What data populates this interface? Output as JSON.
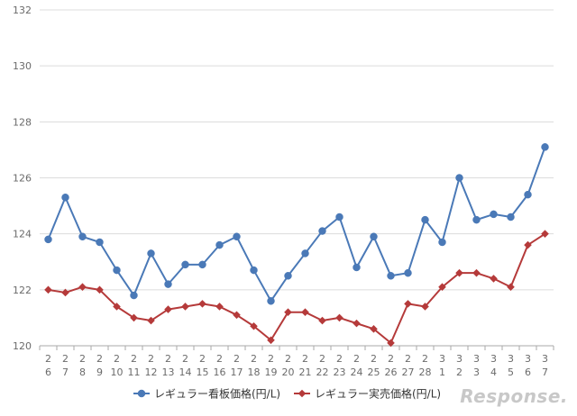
{
  "chart_data": {
    "type": "line",
    "title": "",
    "xlabel": "",
    "ylabel": "",
    "ylim": [
      120,
      132
    ],
    "y_ticks": [
      120,
      122,
      124,
      126,
      128,
      130,
      132
    ],
    "grid": "horizontal",
    "legend_position": "bottom",
    "categories": [
      [
        "2",
        "6"
      ],
      [
        "2",
        "7"
      ],
      [
        "2",
        "8"
      ],
      [
        "2",
        "9"
      ],
      [
        "2",
        "10"
      ],
      [
        "2",
        "11"
      ],
      [
        "2",
        "12"
      ],
      [
        "2",
        "13"
      ],
      [
        "2",
        "14"
      ],
      [
        "2",
        "15"
      ],
      [
        "2",
        "16"
      ],
      [
        "2",
        "17"
      ],
      [
        "2",
        "18"
      ],
      [
        "2",
        "19"
      ],
      [
        "2",
        "20"
      ],
      [
        "2",
        "21"
      ],
      [
        "2",
        "22"
      ],
      [
        "2",
        "23"
      ],
      [
        "2",
        "24"
      ],
      [
        "2",
        "25"
      ],
      [
        "2",
        "26"
      ],
      [
        "2",
        "27"
      ],
      [
        "2",
        "28"
      ],
      [
        "3",
        "1"
      ],
      [
        "3",
        "2"
      ],
      [
        "3",
        "3"
      ],
      [
        "3",
        "4"
      ],
      [
        "3",
        "5"
      ],
      [
        "3",
        "6"
      ],
      [
        "3",
        "7"
      ]
    ],
    "series": [
      {
        "name": "レギュラー看板価格(円/L)",
        "color": "#4a79b7",
        "marker": "circle",
        "values": [
          123.8,
          125.3,
          123.9,
          123.7,
          122.7,
          121.8,
          123.3,
          122.2,
          122.9,
          122.9,
          123.6,
          123.9,
          122.7,
          121.6,
          122.5,
          123.3,
          124.1,
          124.6,
          122.8,
          123.9,
          122.5,
          122.6,
          124.5,
          123.7,
          126.0,
          124.5,
          124.7,
          124.6,
          125.4,
          127.1
        ]
      },
      {
        "name": "レギュラー実売価格(円/L)",
        "color": "#b53a3a",
        "marker": "diamond",
        "values": [
          122.0,
          121.9,
          122.1,
          122.0,
          121.4,
          121.0,
          120.9,
          121.3,
          121.4,
          121.5,
          121.4,
          121.1,
          120.7,
          120.2,
          121.2,
          121.2,
          120.9,
          121.0,
          120.8,
          120.6,
          120.1,
          121.5,
          121.4,
          122.1,
          122.6,
          122.6,
          122.4,
          122.1,
          123.6,
          124.0
        ]
      }
    ]
  },
  "watermark": {
    "text": "Response."
  }
}
